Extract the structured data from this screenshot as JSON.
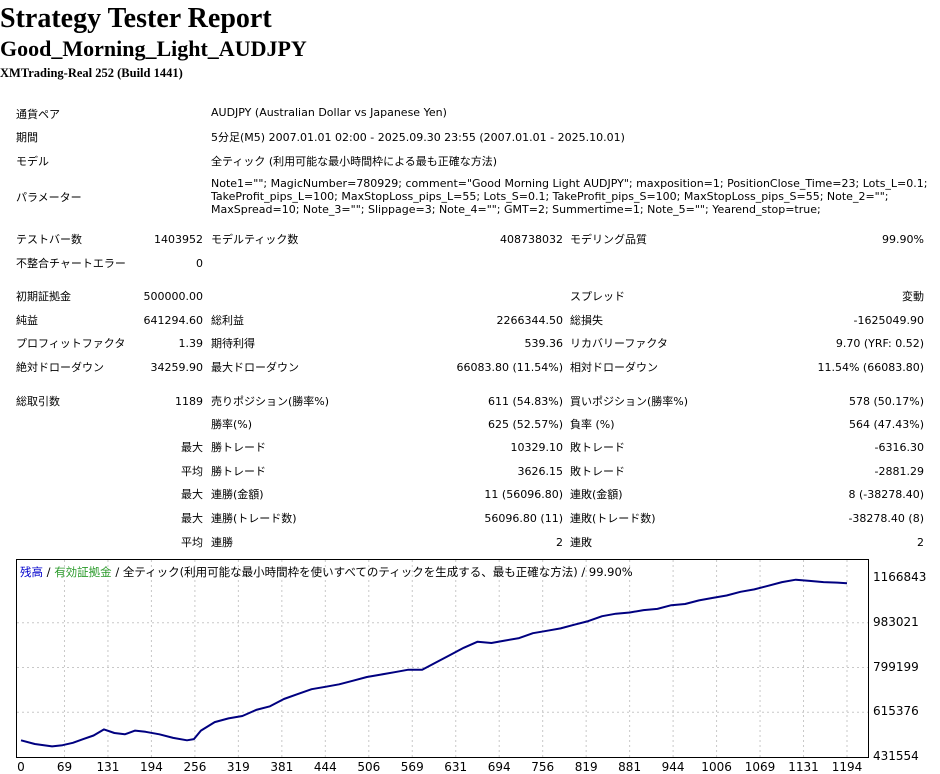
{
  "header": {
    "title": "Strategy Tester Report",
    "subtitle": "Good_Morning_Light_AUDJPY",
    "build": "XMTrading-Real 252 (Build 1441)"
  },
  "info": {
    "symbol_label": "通貨ペア",
    "symbol_value": "AUDJPY (Australian Dollar vs Japanese Yen)",
    "period_label": "期間",
    "period_value": "5分足(M5) 2007.01.01 02:00 - 2025.09.30 23:55 (2007.01.01 - 2025.10.01)",
    "model_label": "モデル",
    "model_value": "全ティック (利用可能な最小時間枠による最も正確な方法)",
    "params_label": "パラメーター",
    "params_lines": [
      "Note1=\"\"; MagicNumber=780929; comment=\"Good Morning Light AUDJPY\"; maxposition=1; PositionClose_Time=23; Lots_L=0.1;",
      "TakeProfit_pips_L=100; MaxStopLoss_pips_L=55; Lots_S=0.1; TakeProfit_pips_S=100; MaxStopLoss_pips_S=55; Note_2=\"\";",
      "MaxSpread=10; Note_3=\"\"; Slippage=3; Note_4=\"\"; GMT=2; Summertime=1; Note_5=\"\"; Yearend_stop=true;"
    ]
  },
  "stats": {
    "bars_label": "テストバー数",
    "bars_value": "1403952",
    "ticks_label": "モデルティック数",
    "ticks_value": "408738032",
    "quality_label": "モデリング品質",
    "quality_value": "99.90%",
    "mismatch_label": "不整合チャートエラー",
    "mismatch_value": "0",
    "deposit_label": "初期証拠金",
    "deposit_value": "500000.00",
    "spread_label": "スプレッド",
    "spread_value": "変動",
    "net_label": "純益",
    "net_value": "641294.60",
    "gross_profit_label": "総利益",
    "gross_profit_value": "2266344.50",
    "gross_loss_label": "総損失",
    "gross_loss_value": "-1625049.90",
    "pf_label": "プロフィットファクタ",
    "pf_value": "1.39",
    "payoff_label": "期待利得",
    "payoff_value": "539.36",
    "recovery_label": "リカバリーファクタ",
    "recovery_value": "9.70 (YRF: 0.52)",
    "abs_dd_label": "絶対ドローダウン",
    "abs_dd_value": "34259.90",
    "max_dd_label": "最大ドローダウン",
    "max_dd_value": "66083.80 (11.54%)",
    "rel_dd_label": "相対ドローダウン",
    "rel_dd_value": "11.54% (66083.80)",
    "trades_label": "総取引数",
    "trades_value": "1189",
    "short_label": "売りポジション(勝率%)",
    "short_value": "611 (54.83%)",
    "long_label": "買いポジション(勝率%)",
    "long_value": "578 (50.17%)",
    "win_label": "勝率(%)",
    "win_value": "625 (52.57%)",
    "loss_label": "負率 (%)",
    "loss_value": "564 (47.43%)",
    "max_word": "最大",
    "avg_word": "平均",
    "largest_win_label": "勝トレード",
    "largest_win_value": "10329.10",
    "largest_loss_label": "敗トレード",
    "largest_loss_value": "-6316.30",
    "avg_win_label": "勝トレード",
    "avg_win_value": "3626.15",
    "avg_loss_label": "敗トレード",
    "avg_loss_value": "-2881.29",
    "max_consec_wins_label": "連勝(金額)",
    "max_consec_wins_value": "11 (56096.80)",
    "max_consec_losses_label": "連敗(金額)",
    "max_consec_losses_value": "8 (-38278.40)",
    "max_consec_profit_label": "連勝(トレード数)",
    "max_consec_profit_value": "56096.80 (11)",
    "max_consec_loss_label": "連敗(トレード数)",
    "max_consec_loss_value": "-38278.40 (8)",
    "avg_consec_wins_label": "連勝",
    "avg_consec_wins_value": "2",
    "avg_consec_losses_label": "連敗",
    "avg_consec_losses_value": "2"
  },
  "chart_data": {
    "type": "line",
    "legend": {
      "balance": "残高",
      "sep1": " / ",
      "equity": "有効証拠金",
      "rest": " / 全ティック(利用可能な最小時間枠を使いすべてのティックを生成する、最も正確な方法) / 99.90%"
    },
    "colors": {
      "balance": "#0000cc",
      "equity": "#2a9a2a",
      "line": "#000080",
      "grid": "#c8c8c8"
    },
    "y_ticks": [
      "1166843",
      "983021",
      "799199",
      "615376",
      "431554"
    ],
    "x_ticks": [
      "0",
      "69",
      "131",
      "194",
      "256",
      "319",
      "381",
      "444",
      "506",
      "569",
      "631",
      "694",
      "756",
      "819",
      "881",
      "944",
      "1006",
      "1069",
      "1131",
      "1194"
    ],
    "ylim": [
      431554,
      1166843
    ],
    "xlim": [
      0,
      1194
    ],
    "series": [
      {
        "name": "残高",
        "x": [
          0,
          20,
          45,
          60,
          75,
          90,
          105,
          120,
          135,
          150,
          165,
          180,
          200,
          220,
          240,
          250,
          260,
          280,
          300,
          320,
          340,
          360,
          380,
          400,
          420,
          440,
          460,
          480,
          500,
          520,
          540,
          560,
          580,
          600,
          620,
          640,
          660,
          680,
          700,
          720,
          740,
          760,
          780,
          800,
          820,
          840,
          860,
          880,
          900,
          920,
          940,
          960,
          980,
          1000,
          1020,
          1040,
          1060,
          1080,
          1100,
          1120,
          1140,
          1160,
          1180,
          1194
        ],
        "y": [
          500000,
          485000,
          475000,
          480000,
          490000,
          505000,
          520000,
          545000,
          530000,
          525000,
          540000,
          535000,
          525000,
          510000,
          500000,
          505000,
          540000,
          575000,
          590000,
          600000,
          625000,
          640000,
          670000,
          690000,
          710000,
          720000,
          730000,
          745000,
          760000,
          770000,
          780000,
          790000,
          790000,
          820000,
          850000,
          880000,
          905000,
          900000,
          910000,
          920000,
          940000,
          950000,
          960000,
          975000,
          990000,
          1010000,
          1020000,
          1025000,
          1035000,
          1040000,
          1055000,
          1060000,
          1075000,
          1085000,
          1095000,
          1110000,
          1120000,
          1135000,
          1150000,
          1160000,
          1155000,
          1150000,
          1148000,
          1145000
        ]
      }
    ]
  }
}
